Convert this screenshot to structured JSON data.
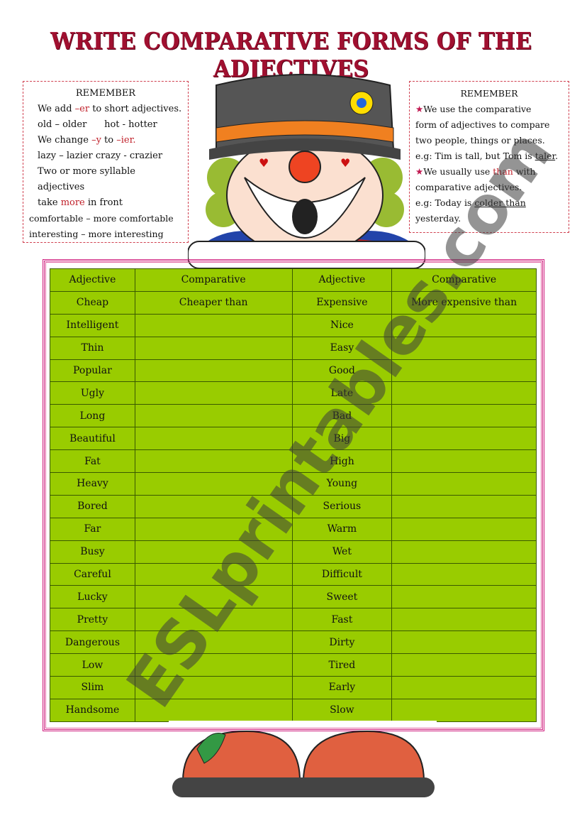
{
  "title": "WRITE COMPARATIVE FORMS OF THE ADJECTIVES",
  "left_box": {
    "heading": "REMEMBER",
    "l1a": "We add ",
    "l1b": "–er",
    "l1c": " to short adjectives.",
    "l2": "old – older      hot - hotter",
    "l3a": "We change ",
    "l3b": "–y",
    "l3c": " to ",
    "l3d": "–ier.",
    "l4": "lazy – lazier     crazy - crazier",
    "l5": "Two or more syllable adjectives",
    "l6a": "take ",
    "l6b": "more",
    "l6c": " in front",
    "l7": "comfortable – more comfortable",
    "l8": "interesting – more interesting"
  },
  "right_box": {
    "heading": "REMEMBER",
    "l1": "We use the comparative",
    "l2": "form of adjectives to compare",
    "l3": "two people, things or places.",
    "l4a": "e.g: Tim is tall, but Tom is ",
    "l4b": "taler",
    "l4c": ".",
    "l5a": "We usually use ",
    "l5b": "than",
    "l5c": " with",
    "l6": "comparative adjectives.",
    "l7a": "e.g: Today is ",
    "l7b": "colder than",
    "l8": "yesterday."
  },
  "table": {
    "headers": [
      "Adjective",
      "Comparative",
      "Adjective",
      "Comparative"
    ],
    "rows": [
      [
        "Cheap",
        "Cheaper than",
        "Expensive",
        "More expensive than"
      ],
      [
        "Intelligent",
        "",
        "Nice",
        ""
      ],
      [
        "Thin",
        "",
        "Easy",
        ""
      ],
      [
        "Popular",
        "",
        "Good",
        ""
      ],
      [
        "Ugly",
        "",
        "Late",
        ""
      ],
      [
        "Long",
        "",
        "Bad",
        ""
      ],
      [
        "Beautiful",
        "",
        "Big",
        ""
      ],
      [
        "Fat",
        "",
        "High",
        ""
      ],
      [
        "Heavy",
        "",
        "Young",
        ""
      ],
      [
        "Bored",
        "",
        "Serious",
        ""
      ],
      [
        "Far",
        "",
        "Warm",
        ""
      ],
      [
        "Busy",
        "",
        "Wet",
        ""
      ],
      [
        "Careful",
        "",
        "Difficult",
        ""
      ],
      [
        "Lucky",
        "",
        "Sweet",
        ""
      ],
      [
        "Pretty",
        "",
        "Fast",
        ""
      ],
      [
        "Dangerous",
        "",
        "Dirty",
        ""
      ],
      [
        "Low",
        "",
        "Tired",
        ""
      ],
      [
        "Slim",
        "",
        "Early",
        ""
      ],
      [
        "Handsome",
        "",
        "Slow",
        ""
      ]
    ]
  },
  "watermark": "ESLprintables.com",
  "colors": {
    "table": "#99cc00",
    "title": "#a01030",
    "frame": "#d02080"
  }
}
